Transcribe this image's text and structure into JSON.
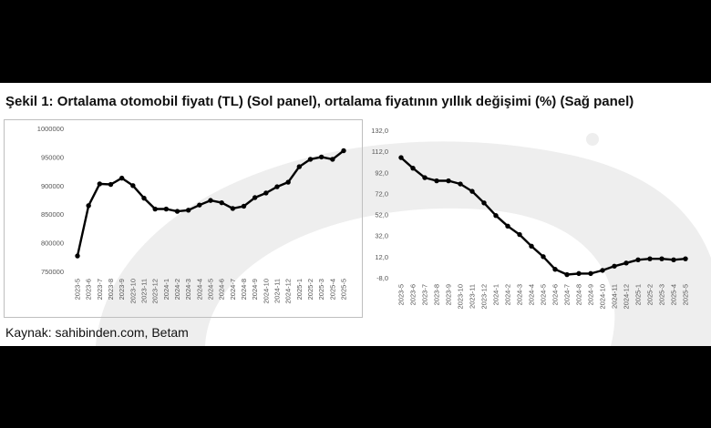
{
  "figure": {
    "title": "Şekil 1: Ortalama otomobil fiyatı (TL) (Sol panel), ortalama fiyatının yıllık değişimi (%) (Sağ panel)",
    "source": "Kaynak: sahibinden.com, Betam"
  },
  "colors": {
    "page_background": "#000000",
    "figure_background": "#ffffff",
    "line": "#000000",
    "watermark": "#eeeeee",
    "panel_border": "#bfbfbf"
  },
  "chart_data": [
    {
      "type": "line",
      "panel": "left",
      "title": "",
      "xlabel": "",
      "ylabel": "",
      "ylim": [
        750000,
        1000000
      ],
      "yticks": [
        "750000",
        "800000",
        "850000",
        "900000",
        "950000",
        "1000000"
      ],
      "grid": false,
      "border": true,
      "categories": [
        "2023-5",
        "2023-6",
        "2023-7",
        "2023-8",
        "2023-9",
        "2023-10",
        "2023-11",
        "2023-12",
        "2024-1",
        "2024-2",
        "2024-3",
        "2024-4",
        "2024-5",
        "2024-6",
        "2024-7",
        "2024-8",
        "2024-9",
        "2024-10",
        "2024-11",
        "2024-12",
        "2025-1",
        "2025-2",
        "2025-3",
        "2025-4",
        "2025-5"
      ],
      "values": [
        777000,
        865000,
        903000,
        902000,
        913000,
        900000,
        878000,
        859000,
        859000,
        855000,
        857000,
        866000,
        874000,
        870000,
        860000,
        864000,
        879000,
        887000,
        898000,
        906000,
        933000,
        946000,
        950000,
        946000,
        961000
      ]
    },
    {
      "type": "line",
      "panel": "right",
      "title": "",
      "xlabel": "",
      "ylabel": "",
      "ylim": [
        -8,
        132
      ],
      "yticks": [
        "-8,0",
        "12,0",
        "32,0",
        "52,0",
        "72,0",
        "92,0",
        "112,0",
        "132,0"
      ],
      "grid": false,
      "border": false,
      "categories": [
        "2023-5",
        "2023-6",
        "2023-7",
        "2023-8",
        "2023-9",
        "2023-10",
        "2023-11",
        "2023-12",
        "2024-1",
        "2024-2",
        "2024-3",
        "2024-4",
        "2024-5",
        "2024-6",
        "2024-7",
        "2024-8",
        "2024-9",
        "2024-10",
        "2024-11",
        "2024-12",
        "2025-1",
        "2025-2",
        "2025-3",
        "2025-4",
        "2025-5"
      ],
      "values": [
        106,
        96,
        87,
        84,
        84,
        81,
        74,
        63,
        51,
        41,
        33,
        22,
        12,
        0,
        -5,
        -4,
        -4,
        -1,
        3,
        6,
        9,
        10,
        10,
        9,
        10
      ]
    }
  ]
}
